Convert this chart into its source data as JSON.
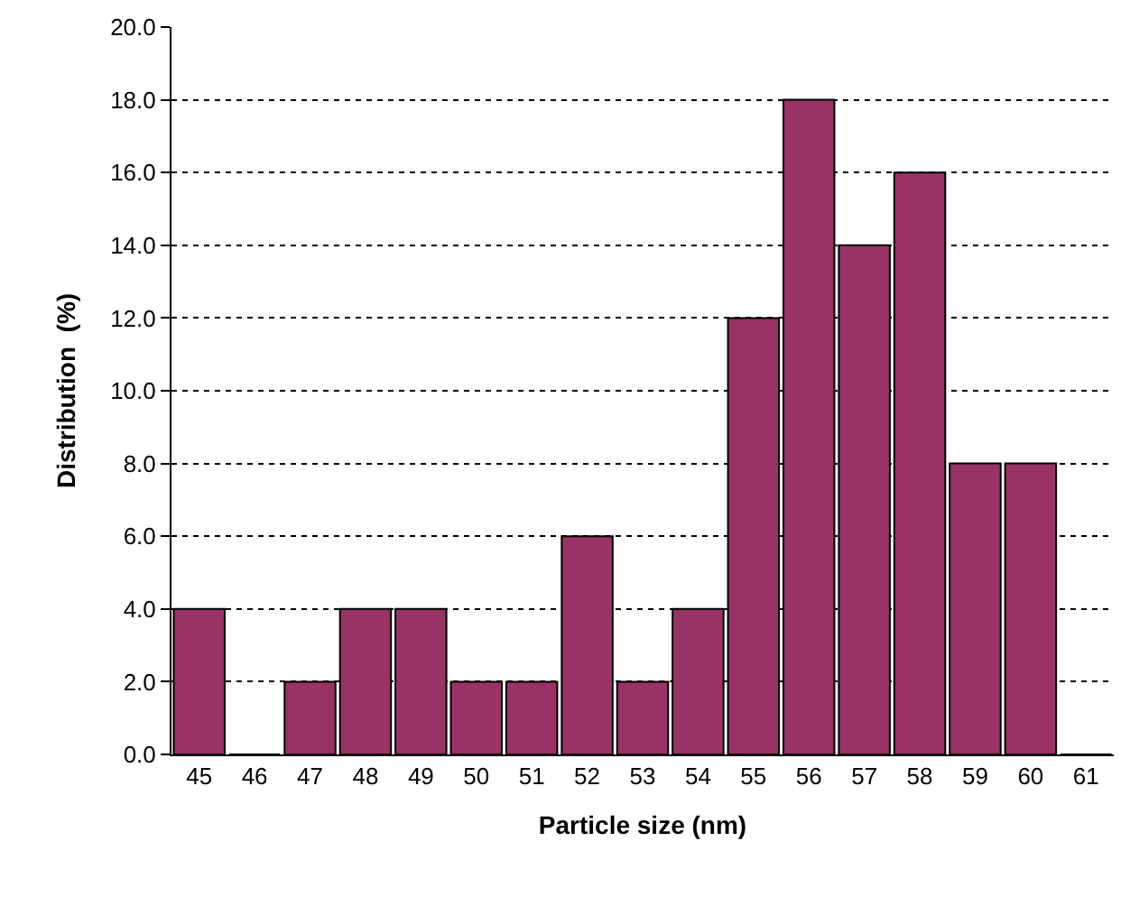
{
  "chart_data": {
    "type": "bar",
    "xlabel": "Particle size (nm)",
    "ylabel": "Distribution  (%)",
    "categories": [
      "45",
      "46",
      "47",
      "48",
      "49",
      "50",
      "51",
      "52",
      "53",
      "54",
      "55",
      "56",
      "57",
      "58",
      "59",
      "60",
      "61"
    ],
    "series": [
      {
        "color": "#993366",
        "values": [
          4,
          0,
          2,
          4,
          4,
          2,
          2,
          6,
          2,
          4,
          12,
          18,
          14,
          16,
          8,
          8,
          0
        ]
      }
    ],
    "ylim": [
      0,
      20
    ],
    "yticks": [
      {
        "value": 0,
        "label": "0.0"
      },
      {
        "value": 2,
        "label": "2.0"
      },
      {
        "value": 4,
        "label": "4.0"
      },
      {
        "value": 6,
        "label": "6.0"
      },
      {
        "value": 8,
        "label": "8.0"
      },
      {
        "value": 10,
        "label": "10.0"
      },
      {
        "value": 12,
        "label": "12.0"
      },
      {
        "value": 14,
        "label": "14.0"
      },
      {
        "value": 16,
        "label": "16.0"
      },
      {
        "value": 18,
        "label": "18.0"
      },
      {
        "value": 20,
        "label": "20.0"
      }
    ],
    "grid": "y"
  }
}
